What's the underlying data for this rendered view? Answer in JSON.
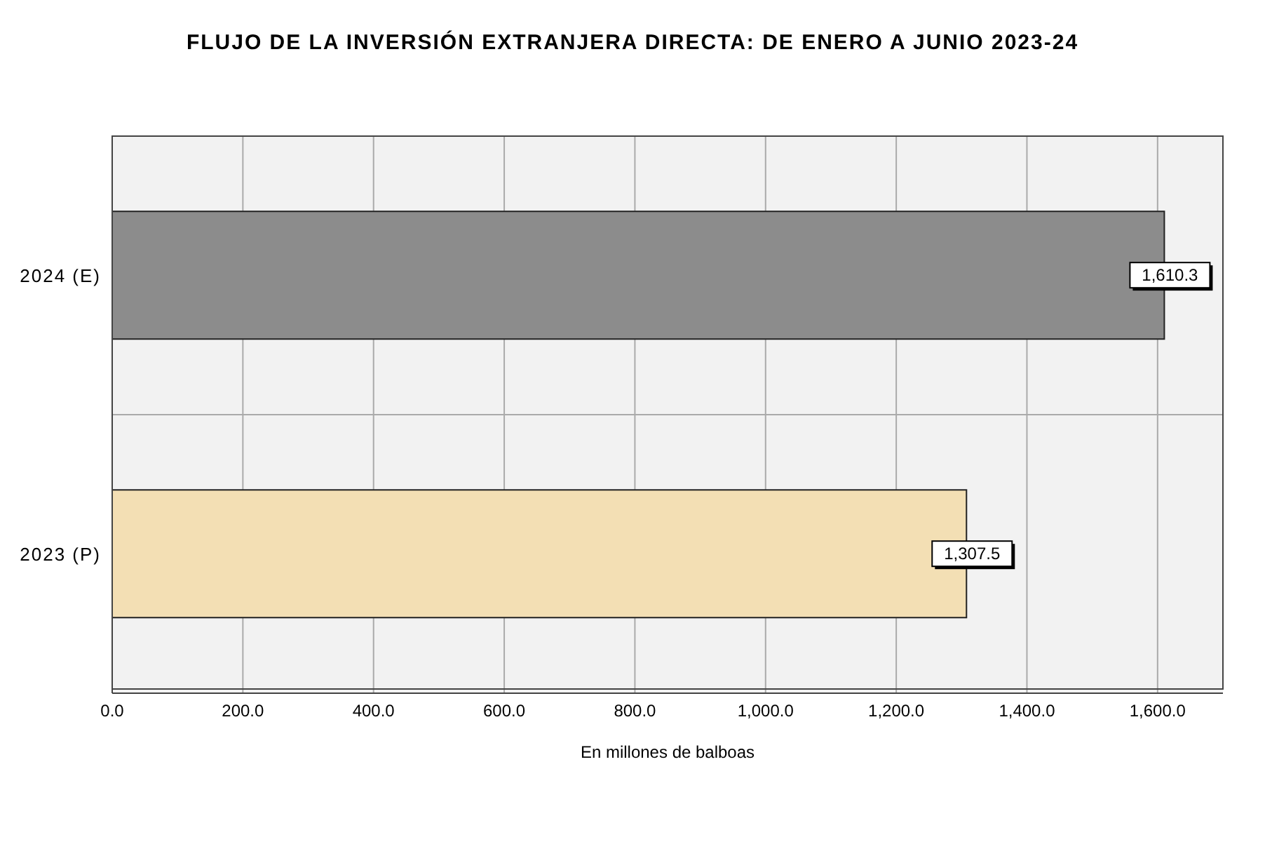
{
  "chart_data": {
    "type": "bar",
    "orientation": "horizontal",
    "title": "FLUJO DE LA INVERSIÓN EXTRANJERA DIRECTA: DE ENERO A JUNIO 2023-24",
    "xlabel": "En millones de balboas",
    "categories": [
      "2024 (E)",
      "2023 (P)"
    ],
    "values": [
      1610.3,
      1307.5
    ],
    "value_labels": [
      "1,610.3",
      "1,307.5"
    ],
    "colors": [
      "#8c8c8c",
      "#f3dfb4"
    ],
    "xlim": [
      0,
      1700
    ],
    "xticks": [
      {
        "value": 0,
        "label": "0.0"
      },
      {
        "value": 200,
        "label": "200.0"
      },
      {
        "value": 400,
        "label": "400.0"
      },
      {
        "value": 600,
        "label": "600.0"
      },
      {
        "value": 800,
        "label": "800.0"
      },
      {
        "value": 1000,
        "label": "1,000.0"
      },
      {
        "value": 1200,
        "label": "1,200.0"
      },
      {
        "value": 1400,
        "label": "1,400.0"
      },
      {
        "value": 1600,
        "label": "1,600.0"
      }
    ],
    "grid": true
  }
}
